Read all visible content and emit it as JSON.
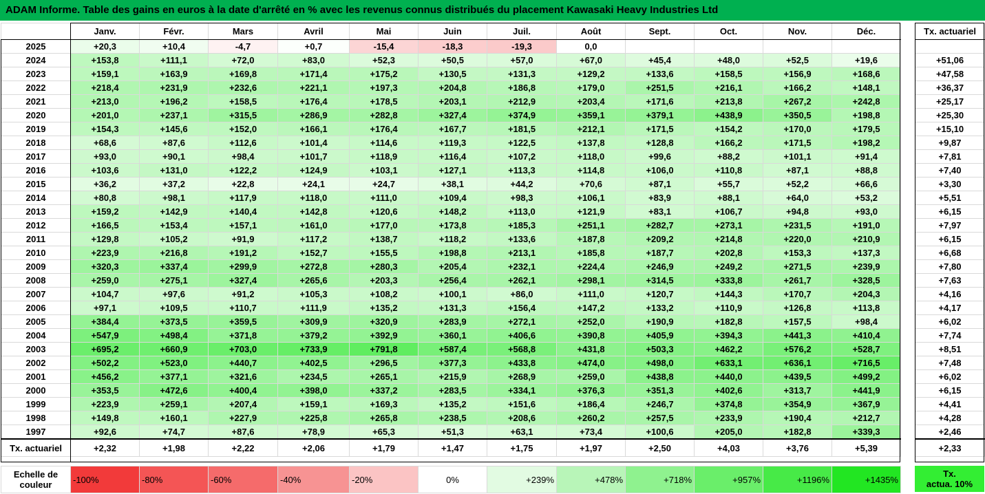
{
  "title": "ADAM Informe. Table des gains en euros à la date d'arrêté en % avec les revenus connus distribués du placement Kawasaki Heavy Industries Ltd",
  "months": [
    "Janv.",
    "Févr.",
    "Mars",
    "Avril",
    "Mai",
    "Juin",
    "Juil.",
    "Août",
    "Sept.",
    "Oct.",
    "Nov.",
    "Déc."
  ],
  "side_header": "Tx. actuariel",
  "rows": [
    {
      "year": "2025",
      "values": [
        "+20,3",
        "+10,4",
        "-4,7",
        "+0,7",
        "-15,4",
        "-18,3",
        "-19,3",
        "0,0",
        "",
        "",
        "",
        ""
      ],
      "rate": ""
    },
    {
      "year": "2024",
      "values": [
        "+153,8",
        "+111,1",
        "+72,0",
        "+83,0",
        "+52,3",
        "+50,5",
        "+57,0",
        "+67,0",
        "+45,4",
        "+48,0",
        "+52,5",
        "+19,6"
      ],
      "rate": "+51,06"
    },
    {
      "year": "2023",
      "values": [
        "+159,1",
        "+163,9",
        "+169,8",
        "+171,4",
        "+175,2",
        "+130,5",
        "+131,3",
        "+129,2",
        "+133,6",
        "+158,5",
        "+156,9",
        "+168,6"
      ],
      "rate": "+47,58"
    },
    {
      "year": "2022",
      "values": [
        "+218,4",
        "+231,9",
        "+232,6",
        "+221,1",
        "+197,3",
        "+204,8",
        "+186,8",
        "+179,0",
        "+251,5",
        "+216,1",
        "+166,2",
        "+148,1"
      ],
      "rate": "+36,37"
    },
    {
      "year": "2021",
      "values": [
        "+213,0",
        "+196,2",
        "+158,5",
        "+176,4",
        "+178,5",
        "+203,1",
        "+212,9",
        "+203,4",
        "+171,6",
        "+213,8",
        "+267,2",
        "+242,8"
      ],
      "rate": "+25,17"
    },
    {
      "year": "2020",
      "values": [
        "+201,0",
        "+237,1",
        "+315,5",
        "+286,9",
        "+282,8",
        "+327,4",
        "+374,9",
        "+359,1",
        "+379,1",
        "+438,9",
        "+350,5",
        "+198,8"
      ],
      "rate": "+25,30"
    },
    {
      "year": "2019",
      "values": [
        "+154,3",
        "+145,6",
        "+152,0",
        "+166,1",
        "+176,4",
        "+167,7",
        "+181,5",
        "+212,1",
        "+171,5",
        "+154,2",
        "+170,0",
        "+179,5"
      ],
      "rate": "+15,10"
    },
    {
      "year": "2018",
      "values": [
        "+68,6",
        "+87,6",
        "+112,6",
        "+101,4",
        "+114,6",
        "+119,3",
        "+122,5",
        "+137,8",
        "+128,8",
        "+166,2",
        "+171,5",
        "+198,2"
      ],
      "rate": "+9,87"
    },
    {
      "year": "2017",
      "values": [
        "+93,0",
        "+90,1",
        "+98,4",
        "+101,7",
        "+118,9",
        "+116,4",
        "+107,2",
        "+118,0",
        "+99,6",
        "+88,2",
        "+101,1",
        "+91,4"
      ],
      "rate": "+7,81"
    },
    {
      "year": "2016",
      "values": [
        "+103,6",
        "+131,0",
        "+122,2",
        "+124,9",
        "+103,1",
        "+127,1",
        "+113,3",
        "+114,8",
        "+106,0",
        "+110,8",
        "+87,1",
        "+88,8"
      ],
      "rate": "+7,40"
    },
    {
      "year": "2015",
      "values": [
        "+36,2",
        "+37,2",
        "+22,8",
        "+24,1",
        "+24,7",
        "+38,1",
        "+44,2",
        "+70,6",
        "+87,1",
        "+55,7",
        "+52,2",
        "+66,6"
      ],
      "rate": "+3,30"
    },
    {
      "year": "2014",
      "values": [
        "+80,8",
        "+98,1",
        "+117,9",
        "+118,0",
        "+111,0",
        "+109,4",
        "+98,3",
        "+106,1",
        "+83,9",
        "+88,1",
        "+64,0",
        "+53,2"
      ],
      "rate": "+5,51"
    },
    {
      "year": "2013",
      "values": [
        "+159,2",
        "+142,9",
        "+140,4",
        "+142,8",
        "+120,6",
        "+148,2",
        "+113,0",
        "+121,9",
        "+83,1",
        "+106,7",
        "+94,8",
        "+93,0"
      ],
      "rate": "+6,15"
    },
    {
      "year": "2012",
      "values": [
        "+166,5",
        "+153,4",
        "+157,1",
        "+161,0",
        "+177,0",
        "+173,8",
        "+185,3",
        "+251,1",
        "+282,7",
        "+273,1",
        "+231,5",
        "+191,0"
      ],
      "rate": "+7,97"
    },
    {
      "year": "2011",
      "values": [
        "+129,8",
        "+105,2",
        "+91,9",
        "+117,2",
        "+138,7",
        "+118,2",
        "+133,6",
        "+187,8",
        "+209,2",
        "+214,8",
        "+220,0",
        "+210,9"
      ],
      "rate": "+6,15"
    },
    {
      "year": "2010",
      "values": [
        "+223,9",
        "+216,8",
        "+191,2",
        "+152,7",
        "+155,5",
        "+198,8",
        "+213,1",
        "+185,8",
        "+187,7",
        "+202,8",
        "+153,3",
        "+137,3"
      ],
      "rate": "+6,68"
    },
    {
      "year": "2009",
      "values": [
        "+320,3",
        "+337,4",
        "+299,9",
        "+272,8",
        "+280,3",
        "+205,4",
        "+232,1",
        "+224,4",
        "+246,9",
        "+249,2",
        "+271,5",
        "+239,9"
      ],
      "rate": "+7,80"
    },
    {
      "year": "2008",
      "values": [
        "+259,0",
        "+275,1",
        "+327,4",
        "+265,6",
        "+203,3",
        "+256,4",
        "+262,1",
        "+298,1",
        "+314,5",
        "+333,8",
        "+261,7",
        "+328,5"
      ],
      "rate": "+7,63"
    },
    {
      "year": "2007",
      "values": [
        "+104,7",
        "+97,6",
        "+91,2",
        "+105,3",
        "+108,2",
        "+100,1",
        "+86,0",
        "+111,0",
        "+120,7",
        "+144,3",
        "+170,7",
        "+204,3"
      ],
      "rate": "+4,16"
    },
    {
      "year": "2006",
      "values": [
        "+97,1",
        "+109,5",
        "+110,7",
        "+111,9",
        "+135,2",
        "+131,3",
        "+156,4",
        "+147,2",
        "+133,2",
        "+110,9",
        "+126,8",
        "+113,8"
      ],
      "rate": "+4,17"
    },
    {
      "year": "2005",
      "values": [
        "+384,4",
        "+373,5",
        "+359,5",
        "+309,9",
        "+320,9",
        "+283,9",
        "+272,1",
        "+252,0",
        "+190,9",
        "+182,8",
        "+157,5",
        "+98,4"
      ],
      "rate": "+6,02"
    },
    {
      "year": "2004",
      "values": [
        "+547,9",
        "+498,4",
        "+371,8",
        "+379,2",
        "+392,9",
        "+360,1",
        "+406,6",
        "+390,8",
        "+405,9",
        "+394,3",
        "+441,3",
        "+410,4"
      ],
      "rate": "+7,74"
    },
    {
      "year": "2003",
      "values": [
        "+695,2",
        "+660,9",
        "+703,0",
        "+733,9",
        "+791,8",
        "+587,4",
        "+568,8",
        "+431,8",
        "+503,3",
        "+462,2",
        "+576,2",
        "+528,7"
      ],
      "rate": "+8,51"
    },
    {
      "year": "2002",
      "values": [
        "+502,2",
        "+523,0",
        "+440,7",
        "+402,5",
        "+296,5",
        "+377,3",
        "+433,8",
        "+474,0",
        "+498,0",
        "+633,1",
        "+636,1",
        "+716,5"
      ],
      "rate": "+7,48"
    },
    {
      "year": "2001",
      "values": [
        "+456,2",
        "+377,1",
        "+321,6",
        "+234,5",
        "+265,1",
        "+215,9",
        "+268,9",
        "+259,0",
        "+438,8",
        "+440,0",
        "+439,5",
        "+499,2"
      ],
      "rate": "+6,02"
    },
    {
      "year": "2000",
      "values": [
        "+353,5",
        "+472,6",
        "+400,4",
        "+398,0",
        "+337,2",
        "+283,5",
        "+334,1",
        "+376,3",
        "+351,3",
        "+402,6",
        "+313,7",
        "+441,9"
      ],
      "rate": "+6,15"
    },
    {
      "year": "1999",
      "values": [
        "+223,9",
        "+259,1",
        "+207,4",
        "+159,1",
        "+169,3",
        "+135,2",
        "+151,6",
        "+186,4",
        "+246,7",
        "+374,8",
        "+354,9",
        "+367,9"
      ],
      "rate": "+4,41"
    },
    {
      "year": "1998",
      "values": [
        "+149,8",
        "+160,1",
        "+227,9",
        "+225,8",
        "+265,8",
        "+238,5",
        "+208,6",
        "+260,2",
        "+257,5",
        "+233,9",
        "+190,4",
        "+212,7"
      ],
      "rate": "+4,28"
    },
    {
      "year": "1997",
      "values": [
        "+92,6",
        "+74,7",
        "+87,6",
        "+78,9",
        "+65,3",
        "+51,3",
        "+63,1",
        "+73,4",
        "+100,6",
        "+205,0",
        "+182,8",
        "+339,3"
      ],
      "rate": "+2,46"
    }
  ],
  "footer": {
    "label": "Tx. actuariel",
    "values": [
      "+2,32",
      "+1,98",
      "+2,22",
      "+2,06",
      "+1,79",
      "+1,47",
      "+1,75",
      "+1,97",
      "+2,50",
      "+4,03",
      "+3,76",
      "+5,39"
    ],
    "rate": "+2,33"
  },
  "scale": {
    "label_line1": "Echelle de",
    "label_line2": "couleur",
    "steps": [
      {
        "text": "-100%",
        "color": "#f23a3a",
        "kind": "neg"
      },
      {
        "text": "-80%",
        "color": "#f45555",
        "kind": "neg"
      },
      {
        "text": "-60%",
        "color": "#f56b6b",
        "kind": "neg"
      },
      {
        "text": "-40%",
        "color": "#f79393",
        "kind": "neg"
      },
      {
        "text": "-20%",
        "color": "#fbc4c4",
        "kind": "neg"
      },
      {
        "text": "0%",
        "color": "#ffffff",
        "kind": "zero"
      },
      {
        "text": "+239%",
        "color": "#e2fbe2",
        "kind": "pos"
      },
      {
        "text": "+478%",
        "color": "#b8f5b8",
        "kind": "pos"
      },
      {
        "text": "+718%",
        "color": "#8ff28f",
        "kind": "pos"
      },
      {
        "text": "+957%",
        "color": "#6aee6a",
        "kind": "pos"
      },
      {
        "text": "+1196%",
        "color": "#47ea47",
        "kind": "pos"
      },
      {
        "text": "+1435%",
        "color": "#22e622",
        "kind": "pos"
      }
    ],
    "side_line1": "Tx.",
    "side_line2": "actua. 10%",
    "side_color": "#33ee33"
  },
  "colors": {
    "title_bg": "#00b050",
    "positive_base": "#ffffff",
    "positive_max": "#22e622",
    "negative_max": "#f23a3a"
  }
}
